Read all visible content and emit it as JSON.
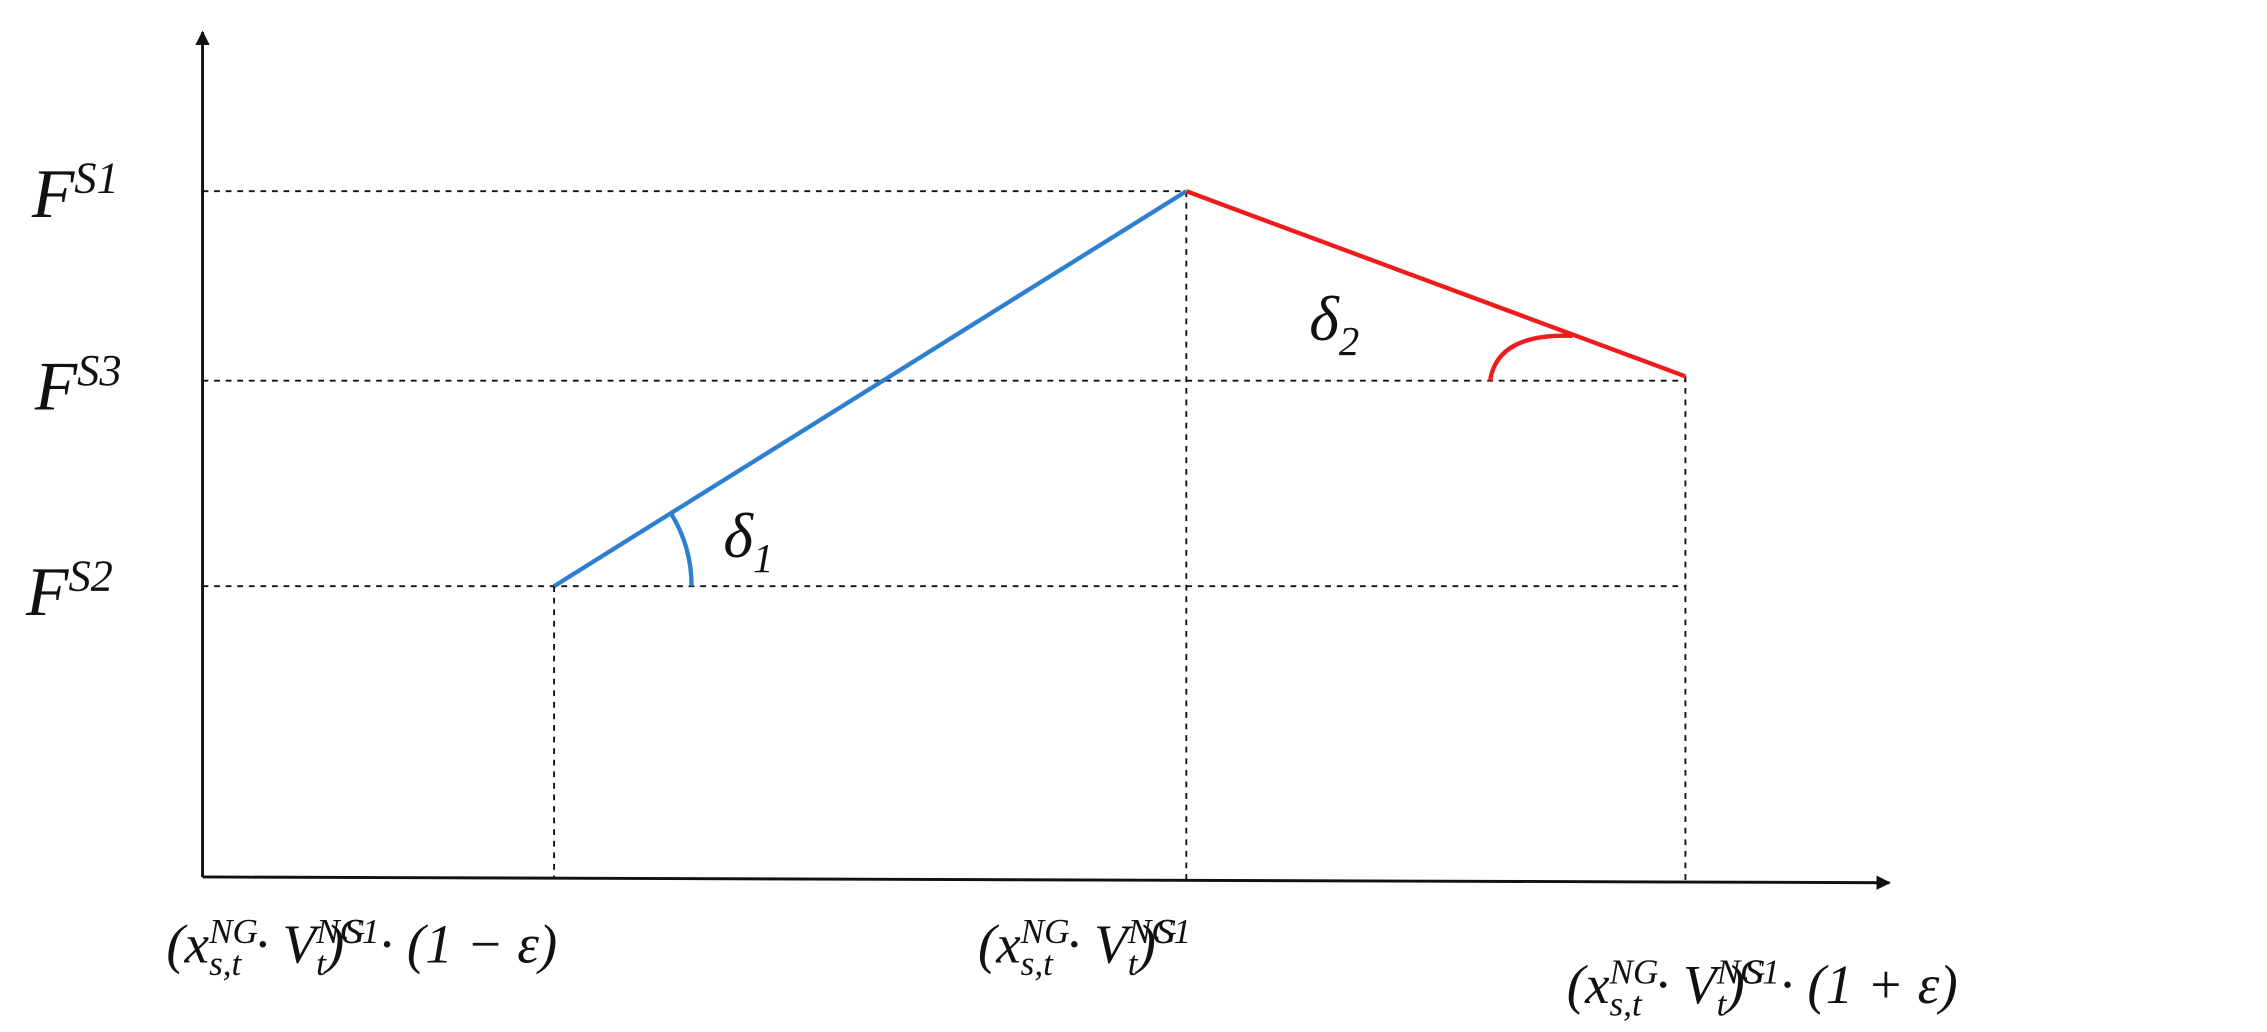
{
  "y_labels": [
    [
      {
        "t": "F"
      },
      {
        "sup": "S1"
      }
    ],
    [
      {
        "t": "F"
      },
      {
        "sup": "S3"
      }
    ],
    [
      {
        "t": "F"
      },
      {
        "sup": "S2"
      }
    ]
  ],
  "x_labels": [
    [
      {
        "t": "(x"
      },
      {
        "sup": "NG",
        "sub": "s,t"
      },
      {
        "t": " · V"
      },
      {
        "sup": "NG",
        "sub": "t"
      },
      {
        "t": ")"
      },
      {
        "sup": "S1"
      },
      {
        "t": "· (1 − ε)"
      }
    ],
    [
      {
        "t": "(x"
      },
      {
        "sup": "NG",
        "sub": "s,t"
      },
      {
        "t": " · V"
      },
      {
        "sup": "NG",
        "sub": "t"
      },
      {
        "t": ")"
      },
      {
        "sup": "S1"
      }
    ],
    [
      {
        "t": "(x"
      },
      {
        "sup": "NG",
        "sub": "s,t"
      },
      {
        "t": " · V"
      },
      {
        "sup": "NG",
        "sub": "t"
      },
      {
        "t": ")"
      },
      {
        "sup": "S1"
      },
      {
        "t": "· (1 + ε)"
      }
    ]
  ],
  "angle_labels": [
    [
      {
        "t": "δ"
      },
      {
        "sub": "1"
      }
    ],
    [
      {
        "t": "δ"
      },
      {
        "sub": "2"
      }
    ]
  ]
}
